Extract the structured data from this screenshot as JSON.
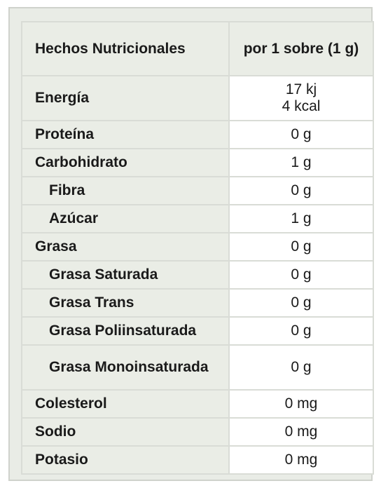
{
  "header": {
    "label": "Hechos Nutricionales",
    "serving": "por 1 sobre (1 g)"
  },
  "energy": {
    "label": "Energía",
    "kj": "17 kj",
    "kcal": "4 kcal"
  },
  "rows": [
    {
      "label": "Proteína",
      "value": "0 g"
    },
    {
      "label": "Carbohidrato",
      "value": "1 g"
    },
    {
      "label": "Fibra",
      "value": "0 g"
    },
    {
      "label": "Azúcar",
      "value": "1 g"
    },
    {
      "label": "Grasa",
      "value": "0 g"
    },
    {
      "label": "Grasa Saturada",
      "value": "0 g"
    },
    {
      "label": "Grasa Trans",
      "value": "0 g"
    },
    {
      "label": "Grasa Poliinsaturada",
      "value": "0 g"
    },
    {
      "label": "Grasa Monoinsaturada",
      "value": "0 g"
    },
    {
      "label": "Colesterol",
      "value": "0 mg"
    },
    {
      "label": "Sodio",
      "value": "0 mg"
    },
    {
      "label": "Potasio",
      "value": "0 mg"
    }
  ]
}
